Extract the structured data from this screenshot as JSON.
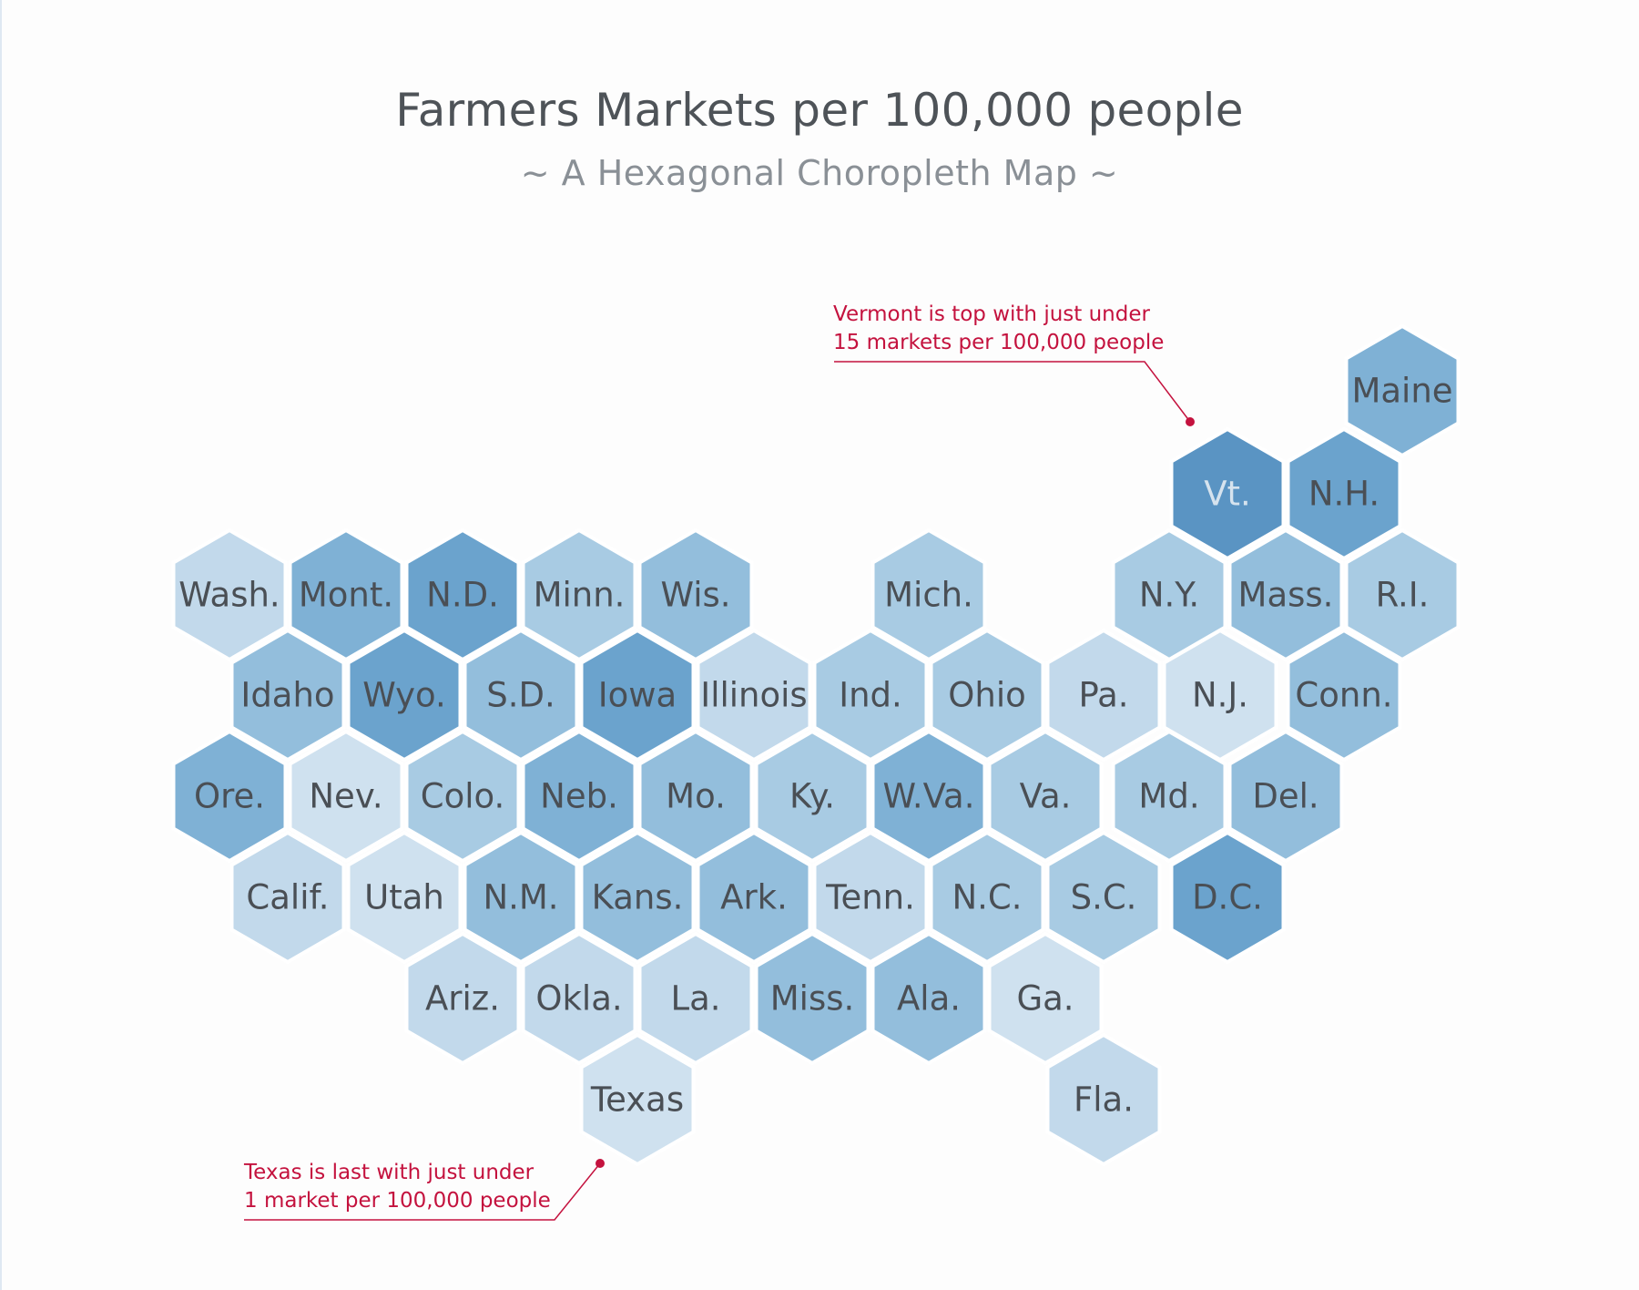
{
  "title": "Farmers Markets per 100,000 people",
  "subtitle": "~ A Hexagonal Choropleth Map ~",
  "colors": {
    "annotation": "#c4123e",
    "title": "#4e5358",
    "subtitle": "#8a9096",
    "label": "#4a4f55",
    "scale": [
      "#cfe1ef",
      "#c2d9eb",
      "#a8cbe3",
      "#93bedc",
      "#7fb1d5",
      "#6ba3cd",
      "#5a94c3"
    ]
  },
  "annotations": [
    {
      "text_line1": "Vermont is top with just under",
      "text_line2": "15 markets per 100,000 people"
    },
    {
      "text_line1": "Texas is last with just under",
      "text_line2": "1 market per 100,000 people"
    }
  ],
  "states": [
    {
      "label": "Maine",
      "level": 4
    },
    {
      "label": "Vt.",
      "level": 6
    },
    {
      "label": "N.H.",
      "level": 5
    },
    {
      "label": "Wash.",
      "level": 1
    },
    {
      "label": "Mont.",
      "level": 4
    },
    {
      "label": "N.D.",
      "level": 5
    },
    {
      "label": "Minn.",
      "level": 2
    },
    {
      "label": "Wis.",
      "level": 3
    },
    {
      "label": "Mich.",
      "level": 2
    },
    {
      "label": "N.Y.",
      "level": 2
    },
    {
      "label": "Mass.",
      "level": 3
    },
    {
      "label": "R.I.",
      "level": 2
    },
    {
      "label": "Idaho",
      "level": 3
    },
    {
      "label": "Wyo.",
      "level": 5
    },
    {
      "label": "S.D.",
      "level": 3
    },
    {
      "label": "Iowa",
      "level": 5
    },
    {
      "label": "Illinois",
      "level": 1
    },
    {
      "label": "Ind.",
      "level": 2
    },
    {
      "label": "Ohio",
      "level": 2
    },
    {
      "label": "Pa.",
      "level": 1
    },
    {
      "label": "N.J.",
      "level": 0
    },
    {
      "label": "Conn.",
      "level": 3
    },
    {
      "label": "Ore.",
      "level": 4
    },
    {
      "label": "Nev.",
      "level": 0
    },
    {
      "label": "Colo.",
      "level": 2
    },
    {
      "label": "Neb.",
      "level": 4
    },
    {
      "label": "Mo.",
      "level": 3
    },
    {
      "label": "Ky.",
      "level": 2
    },
    {
      "label": "W.Va.",
      "level": 4
    },
    {
      "label": "Va.",
      "level": 2
    },
    {
      "label": "Md.",
      "level": 2
    },
    {
      "label": "Del.",
      "level": 3
    },
    {
      "label": "Calif.",
      "level": 1
    },
    {
      "label": "Utah",
      "level": 0
    },
    {
      "label": "N.M.",
      "level": 3
    },
    {
      "label": "Kans.",
      "level": 3
    },
    {
      "label": "Ark.",
      "level": 3
    },
    {
      "label": "Tenn.",
      "level": 1
    },
    {
      "label": "N.C.",
      "level": 2
    },
    {
      "label": "S.C.",
      "level": 2
    },
    {
      "label": "D.C.",
      "level": 5
    },
    {
      "label": "Ariz.",
      "level": 1
    },
    {
      "label": "Okla.",
      "level": 1
    },
    {
      "label": "La.",
      "level": 1
    },
    {
      "label": "Miss.",
      "level": 3
    },
    {
      "label": "Ala.",
      "level": 3
    },
    {
      "label": "Ga.",
      "level": 0
    },
    {
      "label": "Texas",
      "level": 0
    },
    {
      "label": "Fla.",
      "level": 1
    }
  ]
}
